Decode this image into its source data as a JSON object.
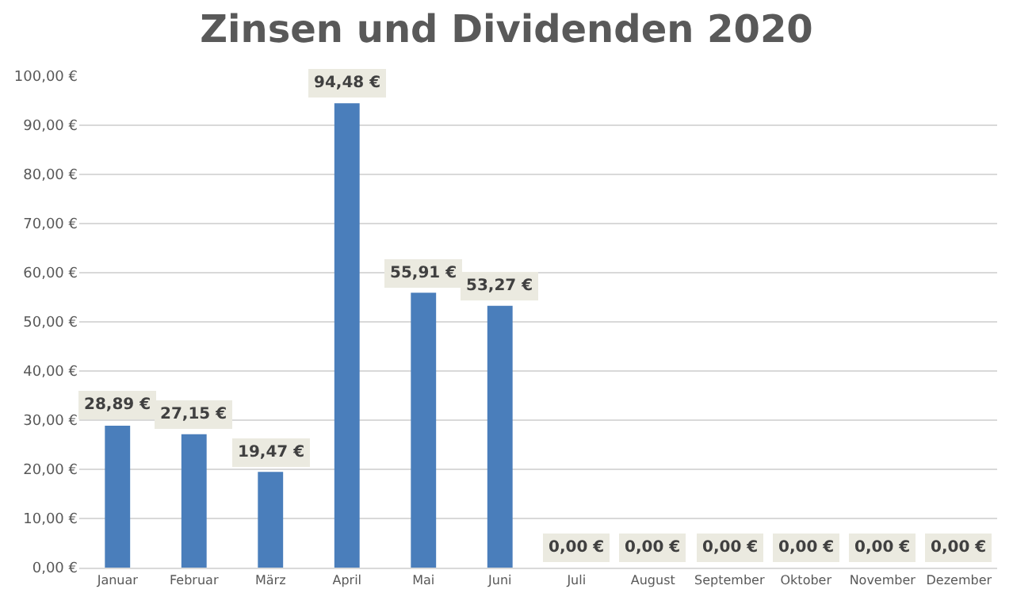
{
  "chart_data": {
    "type": "bar",
    "title": "Zinsen und Dividenden 2020",
    "categories": [
      "Januar",
      "Februar",
      "März",
      "April",
      "Mai",
      "Juni",
      "Juli",
      "August",
      "September",
      "Oktober",
      "November",
      "Dezember"
    ],
    "values": [
      28.89,
      27.15,
      19.47,
      94.48,
      55.91,
      53.27,
      0,
      0,
      0,
      0,
      0,
      0
    ],
    "value_labels": [
      "28,89 €",
      "27,15 €",
      "19,47 €",
      "94,48 €",
      "55,91 €",
      "53,27 €",
      "0,00 €",
      "0,00 €",
      "0,00 €",
      "0,00 €",
      "0,00 €",
      "0,00 €"
    ],
    "color": "#4a7ebb",
    "ylim": [
      0,
      100
    ],
    "yticks": [
      {
        "value": 0,
        "label": "0,00 €"
      },
      {
        "value": 10,
        "label": "10,00 €"
      },
      {
        "value": 20,
        "label": "20,00 €"
      },
      {
        "value": 30,
        "label": "30,00 €"
      },
      {
        "value": 40,
        "label": "40,00 €"
      },
      {
        "value": 50,
        "label": "50,00 €"
      },
      {
        "value": 60,
        "label": "60,00 €"
      },
      {
        "value": 70,
        "label": "70,00 €"
      },
      {
        "value": 80,
        "label": "80,00 €"
      },
      {
        "value": 90,
        "label": "90,00 €"
      },
      {
        "value": 100,
        "label": "100,00 €"
      }
    ],
    "grid": "y",
    "legend": false
  }
}
